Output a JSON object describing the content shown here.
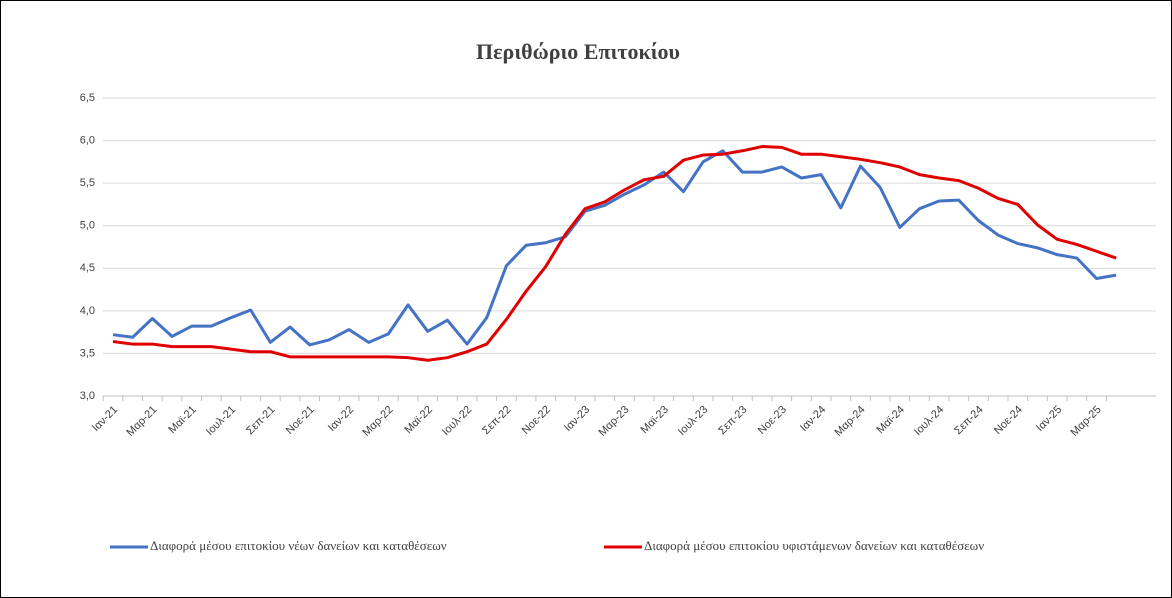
{
  "chart_data": {
    "type": "line",
    "title": "Περιθώριο Επιτοκίου",
    "categories": [
      "Ιαν-21",
      null,
      "Μαρ-21",
      null,
      "Μαϊ-21",
      null,
      "Ιουλ-21",
      null,
      "Σεπ-21",
      null,
      "Νοε-21",
      null,
      "Ιαν-22",
      null,
      "Μαρ-22",
      null,
      "Μαϊ-22",
      null,
      "Ιουλ-22",
      null,
      "Σεπ-22",
      null,
      "Νοε-22",
      null,
      "Ιαν-23",
      null,
      "Μαρ-23",
      null,
      "Μαϊ-23",
      null,
      "Ιουλ-23",
      null,
      "Σεπ-23",
      null,
      "Νοε-23",
      null,
      "Ιαν-24",
      null,
      "Μαρ-24",
      null,
      "Μαϊ-24",
      null,
      "Ιουλ-24",
      null,
      "Σεπ-24",
      null,
      "Νοε-24",
      null,
      "Ιαν-25",
      null,
      "Μαρ-25",
      null
    ],
    "series": [
      {
        "name": "Διαφορά μέσου επιτοκίου νέων δανείων και καταθέσεων",
        "color": "#4472c4",
        "values": [
          3.72,
          3.69,
          3.91,
          3.7,
          3.82,
          3.82,
          3.92,
          4.01,
          3.63,
          3.81,
          3.6,
          3.66,
          3.78,
          3.63,
          3.73,
          4.07,
          3.76,
          3.89,
          3.61,
          3.92,
          4.53,
          4.77,
          4.8,
          4.87,
          5.17,
          5.24,
          5.37,
          5.48,
          5.63,
          5.4,
          5.75,
          5.88,
          5.63,
          5.63,
          5.69,
          5.56,
          5.6,
          5.21,
          5.7,
          5.45,
          4.98,
          5.2,
          5.29,
          5.3,
          5.06,
          4.89,
          4.79,
          4.74,
          4.66,
          4.62,
          4.38,
          4.42
        ]
      },
      {
        "name": "Διαφορά μέσου επιτοκίου υφιστάμενων δανείων και καταθέσεων",
        "color": "#e00000",
        "values": [
          3.64,
          3.61,
          3.61,
          3.58,
          3.58,
          3.58,
          3.55,
          3.52,
          3.52,
          3.46,
          3.46,
          3.46,
          3.46,
          3.46,
          3.46,
          3.45,
          3.42,
          3.45,
          3.52,
          3.61,
          3.9,
          4.23,
          4.52,
          4.9,
          5.2,
          5.28,
          5.42,
          5.54,
          5.58,
          5.77,
          5.83,
          5.84,
          5.88,
          5.93,
          5.92,
          5.84,
          5.84,
          5.81,
          5.78,
          5.74,
          5.69,
          5.6,
          5.56,
          5.53,
          5.44,
          5.32,
          5.25,
          5.01,
          4.84,
          4.78,
          4.7,
          4.62
        ]
      }
    ],
    "ylim": [
      3.0,
      6.5
    ],
    "yticks": [
      {
        "value": 3.0,
        "label": "3,0"
      },
      {
        "value": 3.5,
        "label": "3,5"
      },
      {
        "value": 4.0,
        "label": "4,0"
      },
      {
        "value": 4.5,
        "label": "4,5"
      },
      {
        "value": 5.0,
        "label": "5,0"
      },
      {
        "value": 5.5,
        "label": "5,5"
      },
      {
        "value": 6.0,
        "label": "6,0"
      },
      {
        "value": 6.5,
        "label": "6,5"
      }
    ],
    "grid": true,
    "legend": "bottom"
  }
}
